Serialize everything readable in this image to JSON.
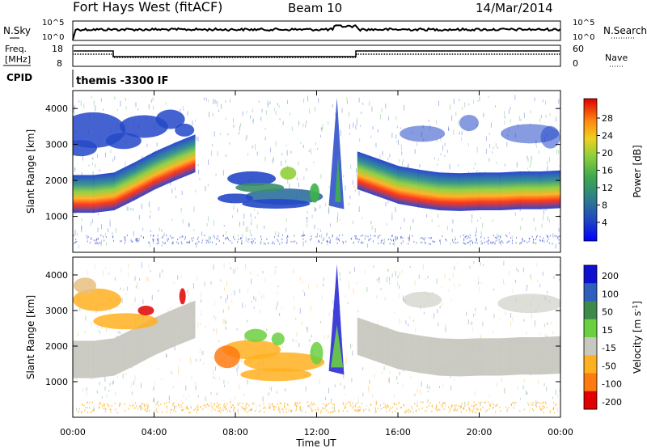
{
  "header": {
    "title": "Fort Hays West (fitACF)",
    "beam": "Beam 10",
    "date": "14/Mar/2014"
  },
  "noise_panel": {
    "left_label": "N.Sky",
    "left_ticks": [
      "10^5",
      "10^0"
    ],
    "right_label": "N.Search",
    "right_ticks": [
      "10^5",
      "10^0"
    ]
  },
  "freq_panel": {
    "left_label_1": "Freq.",
    "left_label_2": "[MHz]",
    "left_ticks": [
      "18",
      "8"
    ],
    "right_label": "Nave",
    "right_ticks": [
      "60",
      "0"
    ]
  },
  "cpid_panel": {
    "label": "CPID",
    "value": "themis -3300 IF"
  },
  "chart_data": [
    {
      "type": "heatmap",
      "panel": "power",
      "ylabel": "Slant Range [km]",
      "yticks": [
        1000,
        2000,
        3000,
        4000
      ],
      "ylim": [
        0,
        4500
      ],
      "xlim": [
        0,
        24
      ],
      "xticks": [
        0,
        4,
        8,
        12,
        16,
        20,
        24
      ],
      "colorbar_label": "Power [dB]",
      "colorbar_ticks": [
        "28",
        "24",
        "20",
        "16",
        "12",
        "8",
        "4"
      ],
      "colorbar_colors": [
        "#0000ff",
        "#1f3fd0",
        "#2e6b9e",
        "#3a8f6a",
        "#3fb04a",
        "#8fd03a",
        "#f0e020",
        "#ffb020",
        "#ff7a10",
        "#ff3010",
        "#e00000"
      ],
      "bands": [
        {
          "x": [
            0.0,
            1.0,
            2.0,
            3.0,
            4.0,
            5.0,
            6.0
          ],
          "y": [
            1250,
            1250,
            1320,
            1600,
            1900,
            2150,
            2380
          ]
        },
        {
          "x": [
            14.0,
            15.0,
            16.0,
            17.0,
            18.0,
            19.0,
            20.0,
            21.0,
            22.0,
            23.0,
            24.0
          ],
          "y": [
            1900,
            1700,
            1500,
            1400,
            1320,
            1300,
            1320,
            1320,
            1350,
            1350,
            1380
          ]
        }
      ]
    },
    {
      "type": "heatmap",
      "panel": "velocity",
      "ylabel": "Slant Range [km]",
      "yticks": [
        1000,
        2000,
        3000,
        4000
      ],
      "ylim": [
        0,
        4500
      ],
      "xlim": [
        0,
        24
      ],
      "xticks": [
        0,
        4,
        8,
        12,
        16,
        20,
        24
      ],
      "xticklabels": [
        "00:00",
        "04:00",
        "08:00",
        "12:00",
        "16:00",
        "20:00",
        "00:00"
      ],
      "xlabel": "Time UT",
      "colorbar_label": "Velocity [m s^-1]",
      "colorbar_ticks": [
        "200",
        "100",
        "50",
        "15",
        "-15",
        "-50",
        "-100",
        "-200"
      ],
      "colorbar_colors": [
        "#1010d0",
        "#2e5fbf",
        "#3d8a4a",
        "#6ad040",
        "#c8c8c0",
        "#ffb020",
        "#ff7a10",
        "#e00000"
      ]
    }
  ]
}
